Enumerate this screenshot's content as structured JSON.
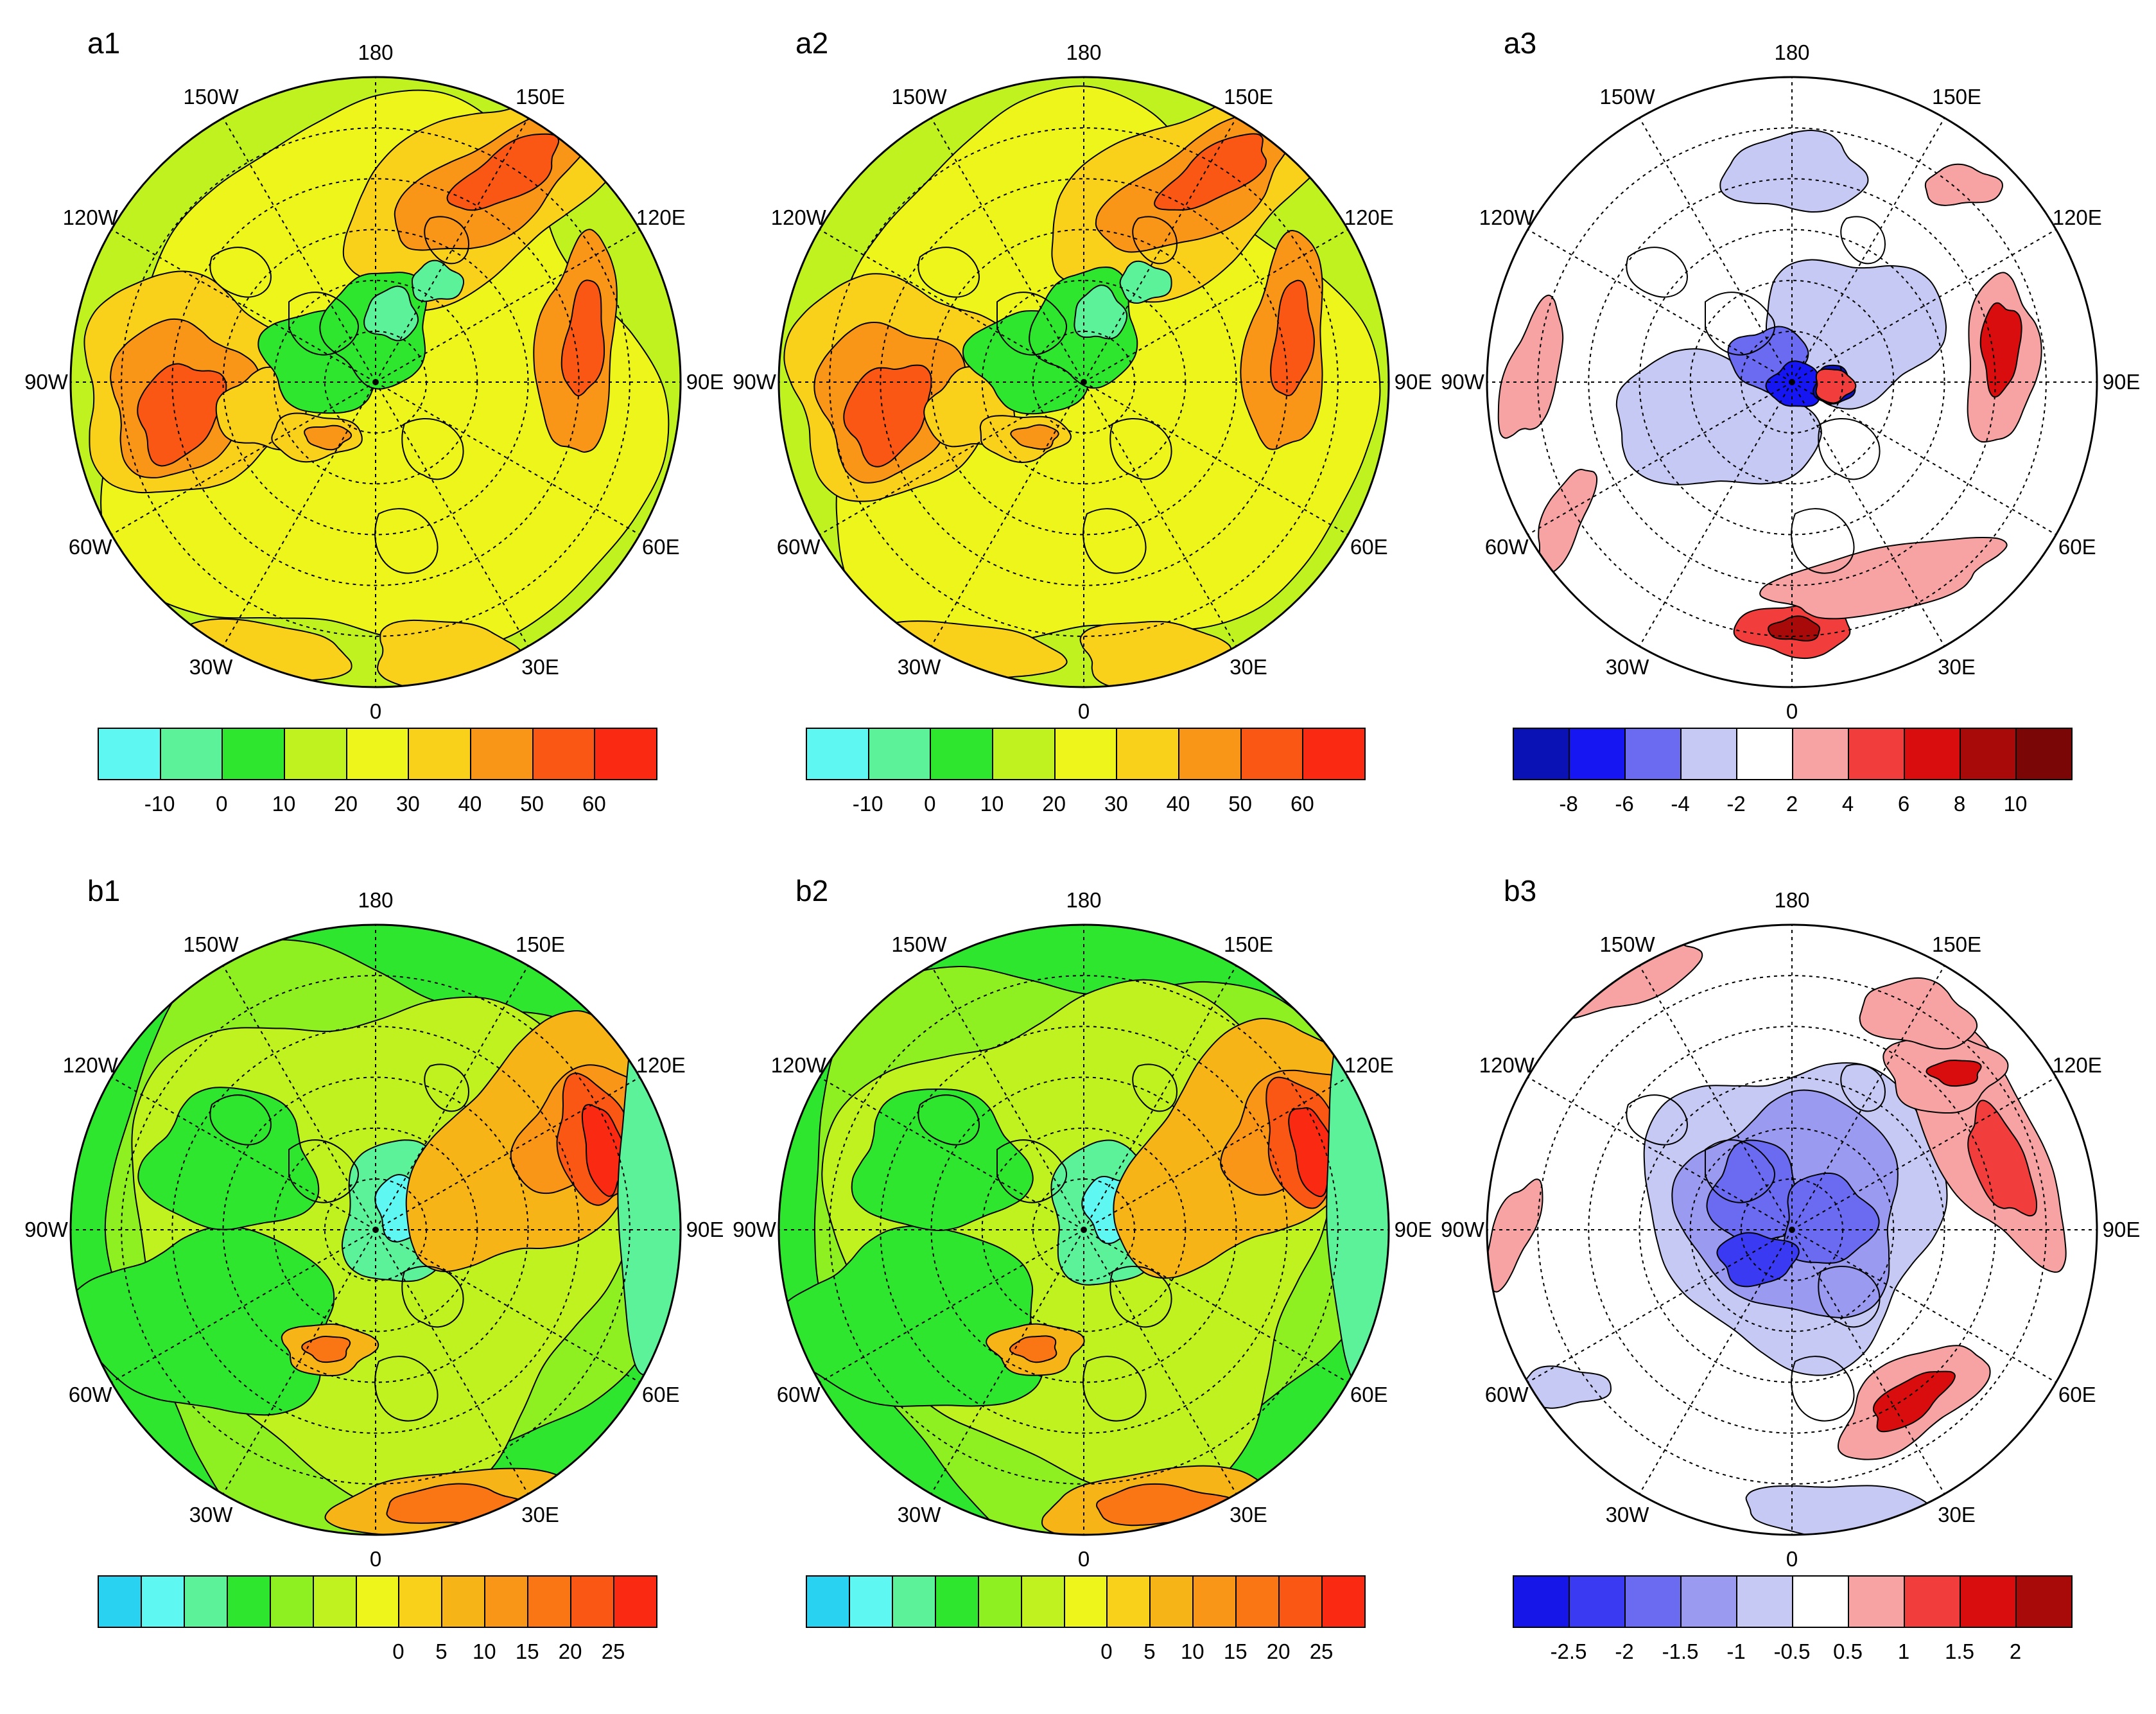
{
  "figure": {
    "panels": [
      {
        "id": "a1",
        "label": "a1",
        "palette": "full",
        "field": "a"
      },
      {
        "id": "a2",
        "label": "a2",
        "palette": "full",
        "field": "a"
      },
      {
        "id": "a3",
        "label": "a3",
        "palette": "diff",
        "field": "a"
      },
      {
        "id": "b1",
        "label": "b1",
        "palette": "full",
        "field": "b"
      },
      {
        "id": "b2",
        "label": "b2",
        "palette": "full",
        "field": "b"
      },
      {
        "id": "b3",
        "label": "b3",
        "palette": "diff",
        "field": "b"
      }
    ],
    "longitude_labels": [
      "180",
      "150E",
      "120E",
      "90E",
      "60E",
      "30E",
      "0",
      "30W",
      "60W",
      "90W",
      "120W",
      "150W"
    ],
    "colorbars": {
      "a_full": {
        "colors": [
          "#5ff7f2",
          "#5cf29a",
          "#2ee62e",
          "#bff21f",
          "#eef51a",
          "#fad11a",
          "#fa9617",
          "#fa5714",
          "#fa2a12"
        ],
        "labels": [
          "-10",
          "0",
          "10",
          "20",
          "30",
          "40",
          "50",
          "60"
        ]
      },
      "a_diff": {
        "colors": [
          "#0b12b5",
          "#1616f2",
          "#6b6bf2",
          "#c7c9f5",
          "#ffffff",
          "#f7a3a3",
          "#f23d3d",
          "#d90d0d",
          "#a80a0a",
          "#7a0606"
        ],
        "labels": [
          "-8",
          "-6",
          "-4",
          "-2",
          "2",
          "4",
          "6",
          "8",
          "10"
        ]
      },
      "b_full": {
        "colors": [
          "#29d2f0",
          "#5ff7f2",
          "#5cf29a",
          "#2ee62e",
          "#8ef020",
          "#bff21f",
          "#eef51a",
          "#fad11a",
          "#f7b417",
          "#fa9617",
          "#fa7514",
          "#fa5714",
          "#fa2a12"
        ],
        "labels": [
          "0",
          "5",
          "10",
          "15",
          "20",
          "25"
        ]
      },
      "b_diff": {
        "colors": [
          "#1616e8",
          "#3a3af2",
          "#6b6bf2",
          "#9a9af0",
          "#c7c9f5",
          "#ffffff",
          "#f7a3a3",
          "#f23d3d",
          "#d90d0d",
          "#a80a0a"
        ],
        "labels": [
          "-2.5",
          "-2",
          "-1.5",
          "-1",
          "-0.5",
          "0.5",
          "1",
          "1.5",
          "2"
        ]
      }
    }
  }
}
